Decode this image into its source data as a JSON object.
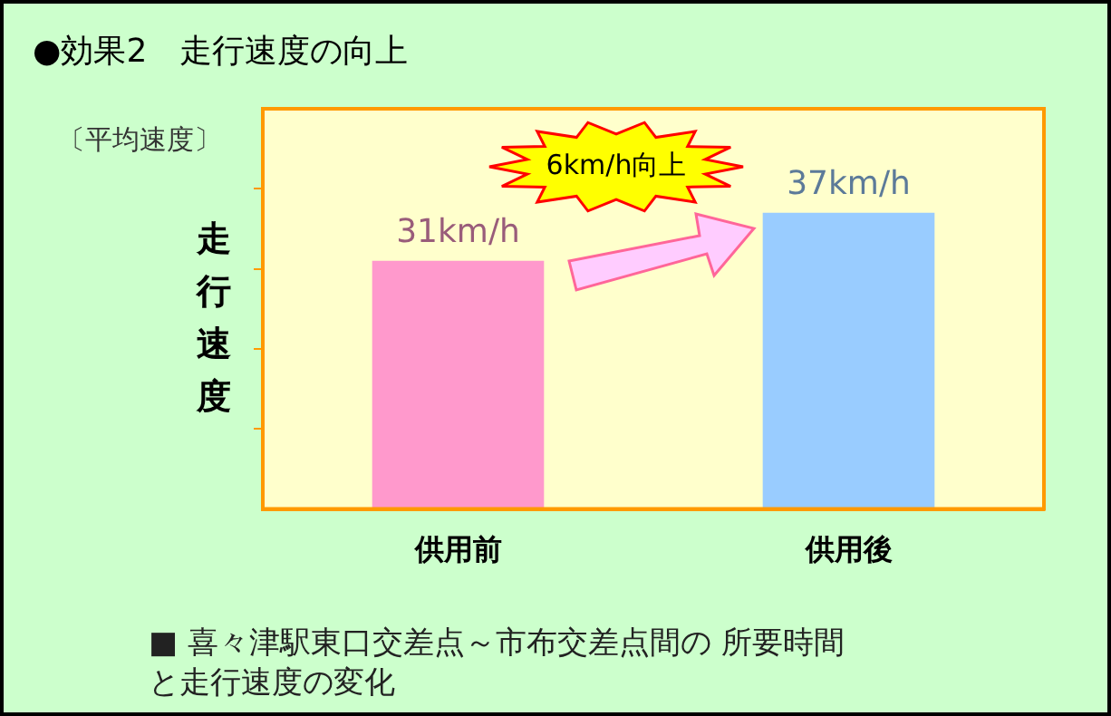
{
  "chart_data": {
    "type": "bar",
    "title": "●効果2　走行速度の向上",
    "ylabel": "走行速度",
    "categories": [
      "供用前",
      "供用後"
    ],
    "values": [
      31,
      37
    ],
    "colors": [
      "#ff99cc",
      "#99ccff"
    ],
    "value_labels": [
      "31km/h",
      "37km/h"
    ],
    "ylim": [
      0,
      50
    ],
    "yticks": [
      {
        "value": 10,
        "label": null
      },
      {
        "value": 20,
        "label": null
      },
      {
        "value": 30,
        "label": null
      },
      {
        "value": 40,
        "label": null
      }
    ],
    "grid": false,
    "legend": false,
    "annotations": [
      "〔平均速度〕",
      "6km/h向上",
      "■ 喜々津駅東口交差点～市布交差点間の 所要時間と走行速度の変化"
    ]
  }
}
